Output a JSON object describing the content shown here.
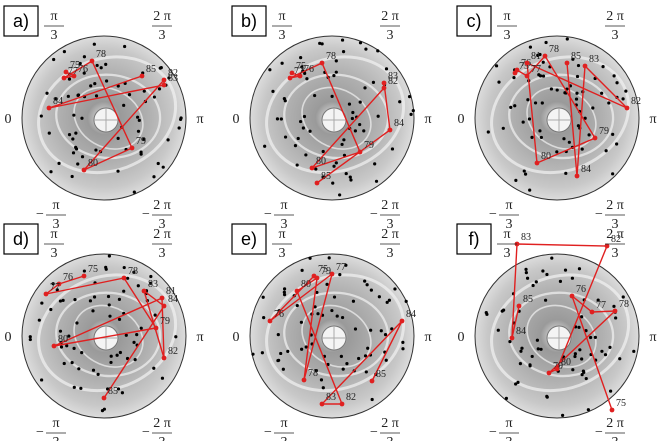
{
  "axis_labels": {
    "top_left": {
      "num": "π",
      "den": "3"
    },
    "top_right": {
      "num": "2 π",
      "den": "3"
    },
    "left": "0",
    "right": "π",
    "bottom_left": {
      "sign": "−",
      "num": "π",
      "den": "3"
    },
    "bottom_right": {
      "sign": "−",
      "num": "2 π",
      "den": "3"
    }
  },
  "panels": [
    {
      "label": "a)",
      "nodes": [
        "75",
        "76",
        "77",
        "78",
        "79",
        "80",
        "82",
        "83",
        "84",
        "85"
      ]
    },
    {
      "label": "b)",
      "nodes": [
        "75",
        "76",
        "77",
        "78",
        "79",
        "80",
        "82",
        "83",
        "84",
        "85"
      ]
    },
    {
      "label": "c)",
      "nodes": [
        "75",
        "76",
        "77",
        "78",
        "79",
        "80",
        "81",
        "82",
        "83",
        "84",
        "85"
      ]
    },
    {
      "label": "d)",
      "nodes": [
        "75",
        "76",
        "77",
        "78",
        "79",
        "80",
        "81",
        "82",
        "83",
        "84",
        "85"
      ]
    },
    {
      "label": "e)",
      "nodes": [
        "75",
        "76",
        "77",
        "78",
        "79",
        "80",
        "82",
        "83",
        "84",
        "85"
      ]
    },
    {
      "label": "f)",
      "nodes": [
        "75",
        "76",
        "77",
        "78",
        "79",
        "80",
        "82",
        "83",
        "84",
        "85"
      ]
    }
  ]
}
